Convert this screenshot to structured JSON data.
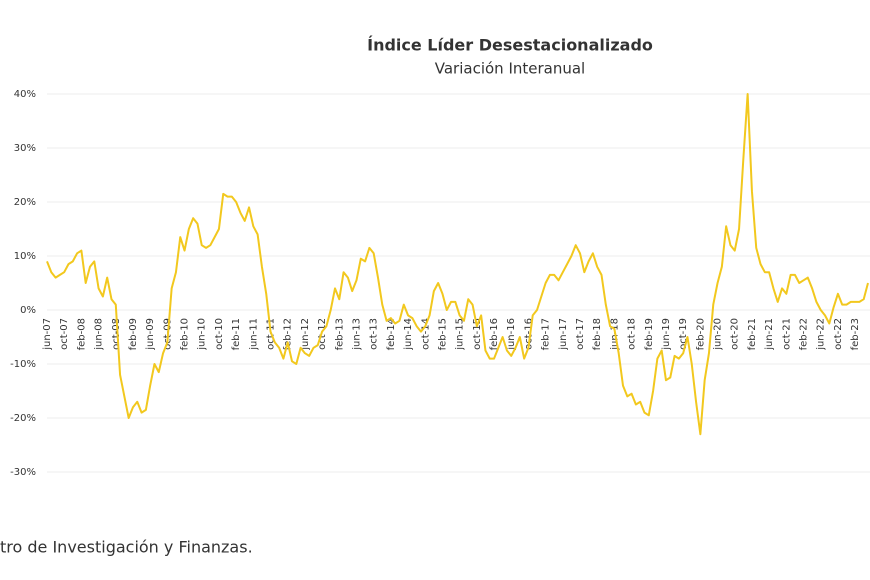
{
  "chart_data": {
    "type": "line",
    "title": "Índice Líder Desestacionalizado",
    "subtitle": "Variación Interanual",
    "source": "tro de Investigación y Finanzas.",
    "categories": [
      "jun-07",
      null,
      null,
      null,
      "oct-07",
      null,
      null,
      null,
      "feb-08",
      null,
      null,
      null,
      "jun-08",
      null,
      null,
      null,
      "oct-08",
      null,
      null,
      null,
      "feb-09",
      null,
      null,
      null,
      "jun-09",
      null,
      null,
      null,
      "oct-09",
      null,
      null,
      null,
      "feb-10",
      null,
      null,
      null,
      "jun-10",
      null,
      null,
      null,
      "oct-10",
      null,
      null,
      null,
      "feb-11",
      null,
      null,
      null,
      "jun-11",
      null,
      null,
      null,
      "oct-11",
      null,
      null,
      null,
      "feb-12",
      null,
      null,
      null,
      "jun-12",
      null,
      null,
      null,
      "oct-12",
      null,
      null,
      null,
      "feb-13",
      null,
      null,
      null,
      "jun-13",
      null,
      null,
      null,
      "oct-13",
      null,
      null,
      null,
      "feb-14",
      null,
      null,
      null,
      "jun-14",
      null,
      null,
      null,
      "oct-14",
      null,
      null,
      null,
      "feb-15",
      null,
      null,
      null,
      "jun-15",
      null,
      null,
      null,
      "oct-15",
      null,
      null,
      null,
      "feb-16",
      null,
      null,
      null,
      "jun-16",
      null,
      null,
      null,
      "oct-16",
      null,
      null,
      null,
      "feb-17",
      null,
      null,
      null,
      "jun-17",
      null,
      null,
      null,
      "oct-17",
      null,
      null,
      null,
      "feb-18",
      null,
      null,
      null,
      "jun-18",
      null,
      null,
      null,
      "oct-18",
      null,
      null,
      null,
      "feb-19",
      null,
      null,
      null,
      "jun-19",
      null,
      null,
      null,
      "oct-19",
      null,
      null,
      null,
      "feb-20",
      null,
      null,
      null,
      "jun-20",
      null,
      null,
      null,
      "oct-20",
      null,
      null,
      null,
      "feb-21",
      null,
      null,
      null,
      "jun-21",
      null,
      null,
      null,
      "oct-21",
      null,
      null,
      null,
      "feb-22",
      null,
      null,
      null,
      "jun-22",
      null,
      null,
      null,
      "oct-22",
      null,
      null,
      null,
      "feb-23",
      null,
      null,
      null
    ],
    "series": [
      {
        "color": "#f2c81e",
        "values": [
          9,
          7,
          6,
          6.5,
          7,
          8.5,
          9,
          10.5,
          11,
          5,
          8,
          9,
          4,
          2.5,
          6,
          2,
          1,
          -12,
          -16,
          -20,
          -18,
          -17,
          -19,
          -18.5,
          -14,
          -10,
          -11.5,
          -8,
          -6,
          4,
          7,
          13.5,
          11,
          15,
          17,
          16,
          12,
          11.5,
          12,
          13.5,
          15,
          21.5,
          21,
          21,
          20,
          18,
          16.5,
          19,
          15.5,
          14,
          8,
          3,
          -4,
          -6,
          -7,
          -9,
          -6,
          -9.5,
          -10,
          -7,
          -8,
          -8.5,
          -7,
          -6.5,
          -4,
          -3,
          0,
          4,
          2,
          7,
          6,
          3.5,
          5.5,
          9.5,
          9,
          11.5,
          10.5,
          6,
          1,
          -2,
          -1.5,
          -2.5,
          -2,
          1,
          -1,
          -1.5,
          -3,
          -4,
          -3,
          -1,
          3.5,
          5,
          3,
          0,
          1.5,
          1.5,
          -1,
          -2,
          2,
          1,
          -3,
          -1,
          -7.5,
          -9,
          -9,
          -7,
          -5,
          -7.5,
          -8.5,
          -7,
          -5,
          -9,
          -7,
          -1,
          0,
          2.5,
          5,
          6.5,
          6.5,
          5.5,
          7,
          8.5,
          10,
          12,
          10.5,
          7,
          9,
          10.5,
          8,
          6.5,
          1,
          -3,
          -3.5,
          -8,
          -14,
          -16,
          -15.5,
          -17.5,
          -17,
          -19,
          -19.5,
          -15,
          -9,
          -7.5,
          -13,
          -12.5,
          -8.5,
          -9,
          -8,
          -5,
          -10,
          -17,
          -23,
          -13,
          -8,
          1,
          5,
          8,
          15.5,
          12,
          11,
          15,
          28,
          40,
          22,
          11.5,
          8.5,
          7,
          7,
          4,
          1.5,
          4,
          3,
          6.5,
          6.5,
          5,
          5.5,
          6,
          4,
          1.5,
          0,
          -1,
          -2.5,
          0.5,
          3,
          1,
          1,
          1.5,
          1.5,
          1.5,
          2,
          5
        ]
      }
    ],
    "ylim": [
      -30,
      40
    ],
    "yticks": [
      {
        "value": -30,
        "label": "-30%"
      },
      {
        "value": -20,
        "label": "-20%"
      },
      {
        "value": -10,
        "label": "-10%"
      },
      {
        "value": 0,
        "label": "0%"
      },
      {
        "value": 10,
        "label": "10%"
      },
      {
        "value": 20,
        "label": "20%"
      },
      {
        "value": 30,
        "label": "30%"
      },
      {
        "value": 40,
        "label": "40%"
      }
    ],
    "grid": true
  }
}
